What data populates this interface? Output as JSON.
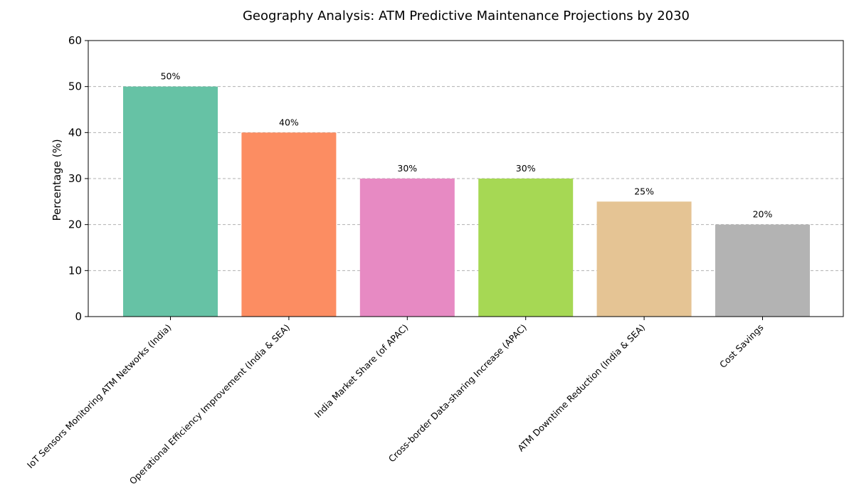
{
  "chart_data": {
    "type": "bar",
    "title": "Geography Analysis: ATM Predictive Maintenance Projections by 2030",
    "xlabel": "",
    "ylabel": "Percentage (%)",
    "ylim": [
      0,
      60
    ],
    "yticks": [
      0,
      10,
      20,
      30,
      40,
      50,
      60
    ],
    "grid": "y-dashed",
    "categories": [
      "IoT Sensors Monitoring ATM Networks (India)",
      "Operational Efficiency Improvement (India & SEA)",
      "India Market Share (of APAC)",
      "Cross-border Data-sharing Increase (APAC)",
      "ATM Downtime Reduction (India & SEA)",
      "Cost Savings"
    ],
    "values": [
      50,
      40,
      30,
      30,
      25,
      20
    ],
    "data_labels": [
      "50%",
      "40%",
      "30%",
      "30%",
      "25%",
      "20%"
    ],
    "colors": [
      "#66c2a5",
      "#fc8d62",
      "#e78ac3",
      "#a6d854",
      "#e5c494",
      "#b3b3b3"
    ]
  }
}
